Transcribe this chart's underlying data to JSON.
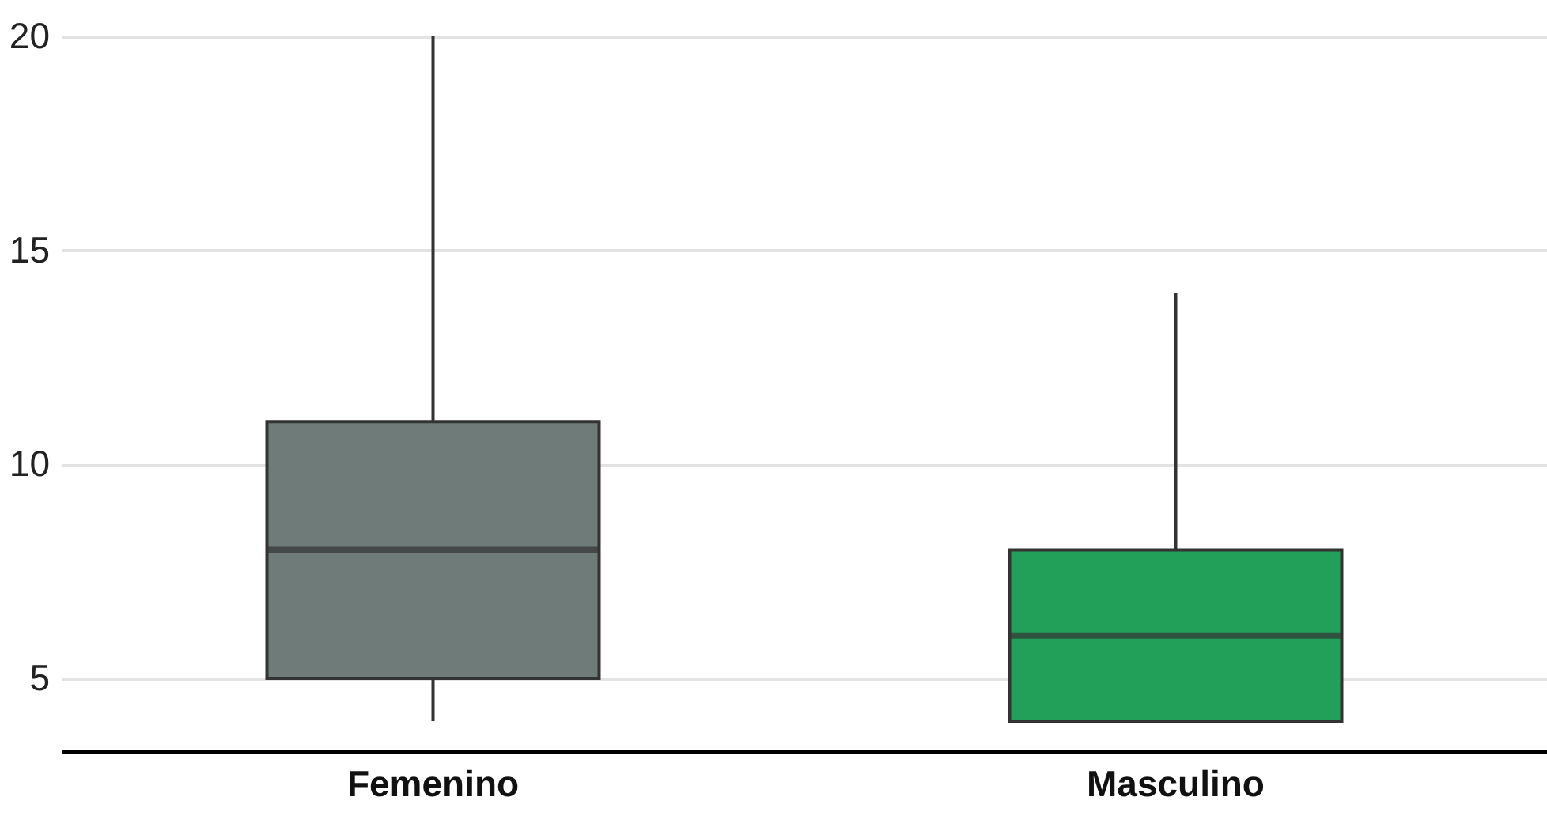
{
  "chart_data": {
    "type": "box",
    "categories": [
      "Femenino",
      "Masculino"
    ],
    "boxes": [
      {
        "low": 4,
        "q1": 5,
        "median": 8,
        "q3": 11,
        "high": 20
      },
      {
        "low": 4,
        "q1": 4,
        "median": 6,
        "q3": 8,
        "high": 14
      }
    ],
    "colors": [
      "#6f7b78",
      "#22a05a"
    ],
    "ylim": [
      3.3,
      20
    ],
    "yticks": [
      5,
      10,
      15,
      20
    ],
    "grid": "y"
  }
}
